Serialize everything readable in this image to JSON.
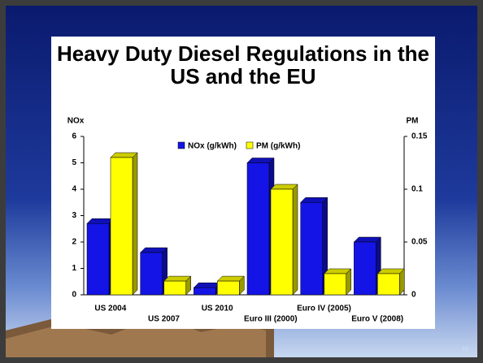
{
  "chart_data": {
    "type": "bar3d",
    "title": "Heavy Duty Diesel Regulations in the US and the EU",
    "y_axis_label": "NOx",
    "y2_axis_label": "PM",
    "categories": [
      "US 2004",
      "US 2007",
      "US 2010",
      "Euro III (2000)",
      "Euro IV (2005)",
      "Euro V (2008)"
    ],
    "series": [
      {
        "name": "NOx (g/kWh)",
        "color": "#1414e6",
        "values": [
          2.7,
          1.6,
          0.27,
          5.0,
          3.5,
          2.0
        ]
      },
      {
        "name": "PM (g/kWh)",
        "color": "#ffff00",
        "axis": "y2",
        "values": [
          0.13,
          0.013,
          0.013,
          0.1,
          0.02,
          0.02
        ]
      }
    ],
    "ylim": [
      0,
      6
    ],
    "yticks": [
      0,
      1,
      2,
      3,
      4,
      5,
      6
    ],
    "y2lim": [
      0,
      0.15
    ],
    "y2ticks": [
      0,
      0.05,
      0.1,
      0.15
    ],
    "legend": "top"
  },
  "slide_number": "15"
}
